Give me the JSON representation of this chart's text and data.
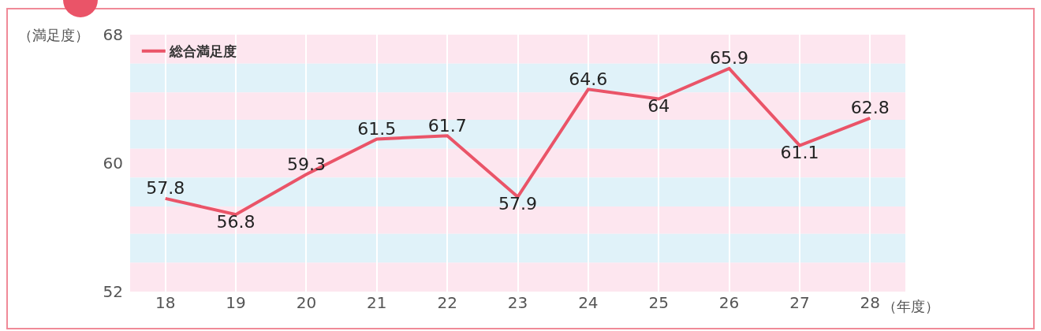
{
  "chart_data": {
    "type": "line",
    "xlabel": "（年度）",
    "ylabel": "（満足度）",
    "categories": [
      "18",
      "19",
      "20",
      "21",
      "22",
      "23",
      "24",
      "25",
      "26",
      "27",
      "28"
    ],
    "series": [
      {
        "name": "総合満足度",
        "color": "#ea5468",
        "values": [
          57.8,
          56.8,
          59.3,
          61.5,
          61.7,
          57.9,
          64.6,
          64,
          65.9,
          61.1,
          62.8
        ]
      }
    ],
    "ylim": [
      52,
      68
    ],
    "yticks": [
      52,
      60,
      68
    ],
    "grid": "x",
    "legend": "top left",
    "data_labels": true,
    "marker": "none",
    "line_style": "solid",
    "bands": [
      {
        "axis": "y",
        "from": 66.2,
        "to": 68,
        "color": "#fde6ef"
      },
      {
        "axis": "y",
        "from": 64.4,
        "to": 66.2,
        "color": "#e0f2f9"
      },
      {
        "axis": "y",
        "from": 62.7,
        "to": 64.4,
        "color": "#fde6ef"
      },
      {
        "axis": "y",
        "from": 60.9,
        "to": 62.7,
        "color": "#e0f2f9"
      },
      {
        "axis": "y",
        "from": 59.1,
        "to": 60.9,
        "color": "#fde6ef"
      },
      {
        "axis": "y",
        "from": 57.3,
        "to": 59.1,
        "color": "#e0f2f9"
      },
      {
        "axis": "y",
        "from": 55.6,
        "to": 57.3,
        "color": "#fde6ef"
      },
      {
        "axis": "y",
        "from": 53.8,
        "to": 55.6,
        "color": "#e0f2f9"
      },
      {
        "axis": "y",
        "from": 52,
        "to": 53.8,
        "color": "#fde6ef"
      }
    ]
  }
}
